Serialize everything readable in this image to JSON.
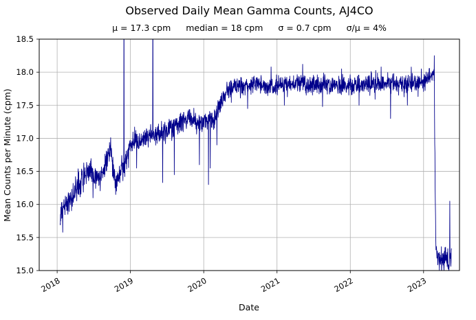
{
  "chart_data": {
    "type": "line",
    "title": "Observed Daily Mean Gamma Counts, AJ4CO",
    "annotations": [
      "μ = 17.3 cpm",
      "median = 18 cpm",
      "σ = 0.7 cpm",
      "σ/μ = 4%"
    ],
    "xlabel": "Date",
    "ylabel": "Mean Counts per Minute (cpm)",
    "xlim": [
      2017.755,
      2023.49
    ],
    "ylim": [
      15.0,
      18.5
    ],
    "xticks": [
      2018,
      2019,
      2020,
      2021,
      2022,
      2023
    ],
    "yticks": [
      15.0,
      15.5,
      16.0,
      16.5,
      17.0,
      17.5,
      18.0,
      18.5
    ],
    "grid": true,
    "legend": "none",
    "line_color": "#00008b",
    "line_width": 0.9,
    "series_name": "daily mean gamma counts (cpm)",
    "x_start": 2018.04,
    "x_end": 2023.38,
    "points_per_year": 365,
    "seed": 1234567,
    "noise_segments": [
      [
        2018.04,
        2018.3,
        0.11
      ],
      [
        2018.3,
        2018.98,
        0.09
      ],
      [
        2018.98,
        2020.22,
        0.08
      ],
      [
        2020.22,
        2023.15,
        0.07
      ],
      [
        2023.15,
        2023.39,
        0.1
      ]
    ],
    "trend": [
      [
        2018.04,
        15.85
      ],
      [
        2018.08,
        15.92
      ],
      [
        2018.12,
        16.0
      ],
      [
        2018.17,
        16.05
      ],
      [
        2018.22,
        16.12
      ],
      [
        2018.28,
        16.25
      ],
      [
        2018.34,
        16.38
      ],
      [
        2018.4,
        16.48
      ],
      [
        2018.46,
        16.52
      ],
      [
        2018.52,
        16.4
      ],
      [
        2018.58,
        16.35
      ],
      [
        2018.64,
        16.5
      ],
      [
        2018.7,
        16.75
      ],
      [
        2018.73,
        16.8
      ],
      [
        2018.77,
        16.45
      ],
      [
        2018.82,
        16.4
      ],
      [
        2018.87,
        16.55
      ],
      [
        2018.92,
        16.6
      ],
      [
        2018.96,
        16.72
      ],
      [
        2019.0,
        16.9
      ],
      [
        2019.06,
        17.0
      ],
      [
        2019.12,
        16.95
      ],
      [
        2019.2,
        17.02
      ],
      [
        2019.3,
        17.05
      ],
      [
        2019.4,
        17.05
      ],
      [
        2019.5,
        17.12
      ],
      [
        2019.6,
        17.18
      ],
      [
        2019.7,
        17.25
      ],
      [
        2019.8,
        17.3
      ],
      [
        2019.88,
        17.25
      ],
      [
        2019.96,
        17.2
      ],
      [
        2020.02,
        17.28
      ],
      [
        2020.08,
        17.3
      ],
      [
        2020.14,
        17.25
      ],
      [
        2020.2,
        17.45
      ],
      [
        2020.26,
        17.62
      ],
      [
        2020.32,
        17.72
      ],
      [
        2020.4,
        17.78
      ],
      [
        2020.55,
        17.78
      ],
      [
        2020.7,
        17.82
      ],
      [
        2020.85,
        17.8
      ],
      [
        2021.0,
        17.78
      ],
      [
        2021.15,
        17.82
      ],
      [
        2021.3,
        17.85
      ],
      [
        2021.45,
        17.8
      ],
      [
        2021.6,
        17.8
      ],
      [
        2021.75,
        17.82
      ],
      [
        2021.9,
        17.8
      ],
      [
        2022.05,
        17.8
      ],
      [
        2022.2,
        17.82
      ],
      [
        2022.35,
        17.8
      ],
      [
        2022.5,
        17.85
      ],
      [
        2022.65,
        17.8
      ],
      [
        2022.8,
        17.82
      ],
      [
        2022.95,
        17.85
      ],
      [
        2023.05,
        17.9
      ],
      [
        2023.12,
        17.95
      ],
      [
        2023.145,
        18.05
      ],
      [
        2023.16,
        16.0
      ],
      [
        2023.17,
        15.3
      ],
      [
        2023.21,
        15.2
      ],
      [
        2023.26,
        15.15
      ],
      [
        2023.31,
        15.18
      ],
      [
        2023.35,
        15.12
      ],
      [
        2023.38,
        15.2
      ]
    ],
    "events": [
      [
        2018.075,
        15.58
      ],
      [
        2018.49,
        16.1
      ],
      [
        2018.8,
        16.15
      ],
      [
        2018.91,
        19.8
      ],
      [
        2019.085,
        16.55
      ],
      [
        2019.305,
        19.8
      ],
      [
        2019.44,
        16.33
      ],
      [
        2019.6,
        16.45
      ],
      [
        2019.94,
        16.6
      ],
      [
        2020.065,
        16.3
      ],
      [
        2020.09,
        16.55
      ],
      [
        2020.18,
        16.9
      ],
      [
        2020.6,
        17.45
      ],
      [
        2020.92,
        18.08
      ],
      [
        2021.1,
        17.5
      ],
      [
        2021.35,
        18.12
      ],
      [
        2021.62,
        17.48
      ],
      [
        2021.88,
        18.05
      ],
      [
        2022.12,
        17.5
      ],
      [
        2022.42,
        18.08
      ],
      [
        2022.55,
        17.3
      ],
      [
        2022.78,
        17.5
      ],
      [
        2022.97,
        18.05
      ],
      [
        2023.148,
        18.25
      ],
      [
        2023.358,
        16.05
      ]
    ]
  }
}
